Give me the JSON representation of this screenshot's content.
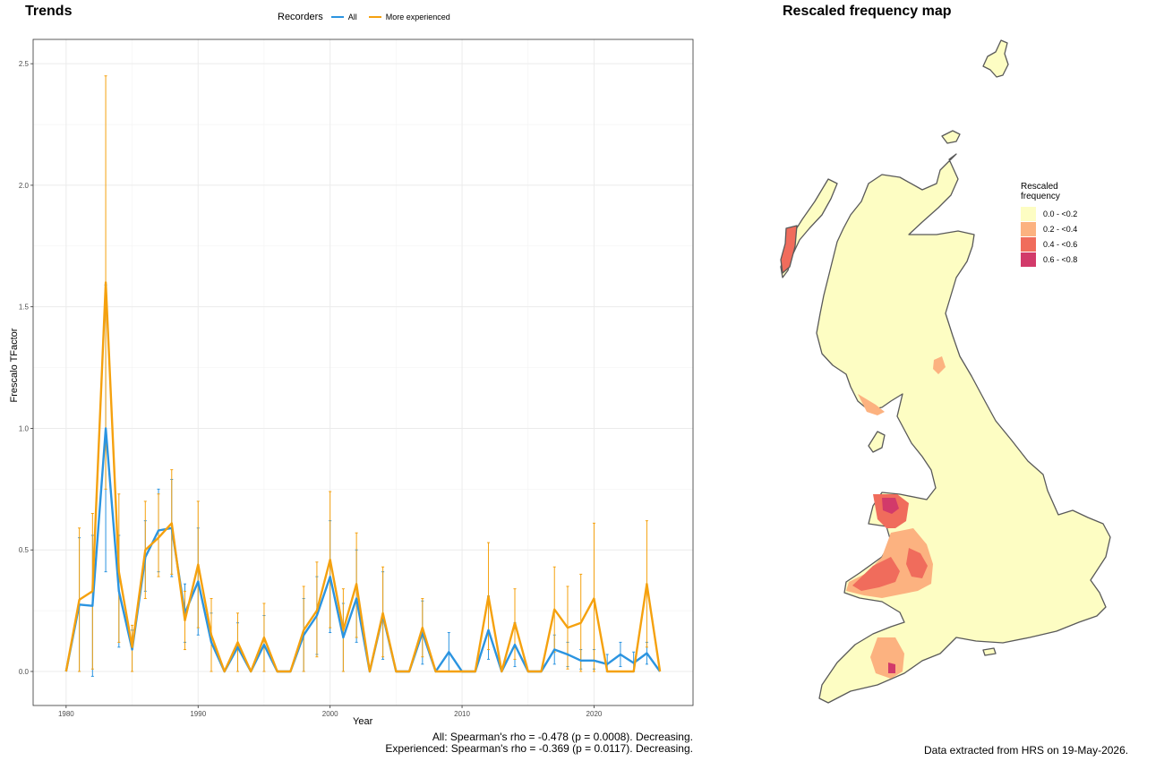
{
  "trends": {
    "title": "Trends",
    "legend_title": "Recorders",
    "xlabel": "Year",
    "ylabel": "Frescalo TFactor",
    "caption_all": "All: Spearman's rho = -0.478 (p = 0.0008). Decreasing.",
    "caption_experienced": "Experienced: Spearman's rho = -0.369 (p = 0.0117). Decreasing."
  },
  "chart_data": {
    "type": "line",
    "title": "Trends",
    "xlabel": "Year",
    "ylabel": "Frescalo TFactor",
    "xlim": [
      1977.5,
      2027.5
    ],
    "ylim": [
      -0.14,
      2.6
    ],
    "xticks": [
      1980,
      1990,
      2000,
      2010,
      2020
    ],
    "xtick_labels": [
      "1980",
      "1990",
      "2000",
      "2010",
      "2020"
    ],
    "yticks": [
      0.0,
      0.5,
      1.0,
      1.5,
      2.0,
      2.5
    ],
    "ytick_labels": [
      "0.0",
      "0.5",
      "1.0",
      "1.5",
      "2.0",
      "2.5"
    ],
    "grid": true,
    "legend_position": "top",
    "series": [
      {
        "name": "All",
        "color": "#2b94e0",
        "points": [
          {
            "x": 1980,
            "y": 0.0
          },
          {
            "x": 1981,
            "y": 0.275,
            "lo": 0.0,
            "hi": 0.55
          },
          {
            "x": 1982,
            "y": 0.27,
            "lo": -0.02,
            "hi": 0.56
          },
          {
            "x": 1983,
            "y": 1.0,
            "lo": 0.41,
            "hi": 1.59
          },
          {
            "x": 1984,
            "y": 0.33,
            "lo": 0.1,
            "hi": 0.56
          },
          {
            "x": 1985,
            "y": 0.09,
            "lo": 0.0,
            "hi": 0.17
          },
          {
            "x": 1986,
            "y": 0.47,
            "lo": 0.33,
            "hi": 0.62
          },
          {
            "x": 1987,
            "y": 0.58,
            "lo": 0.41,
            "hi": 0.75
          },
          {
            "x": 1988,
            "y": 0.59,
            "lo": 0.39,
            "hi": 0.79
          },
          {
            "x": 1989,
            "y": 0.24,
            "lo": 0.12,
            "hi": 0.36
          },
          {
            "x": 1990,
            "y": 0.37,
            "lo": 0.15,
            "hi": 0.59
          },
          {
            "x": 1991,
            "y": 0.12,
            "lo": 0.0,
            "hi": 0.24
          },
          {
            "x": 1992,
            "y": 0.0
          },
          {
            "x": 1993,
            "y": 0.1,
            "lo": 0.0,
            "hi": 0.2
          },
          {
            "x": 1994,
            "y": 0.0
          },
          {
            "x": 1995,
            "y": 0.11,
            "lo": 0.0,
            "hi": 0.23
          },
          {
            "x": 1996,
            "y": 0.0
          },
          {
            "x": 1997,
            "y": 0.0
          },
          {
            "x": 1998,
            "y": 0.15,
            "lo": 0.0,
            "hi": 0.3
          },
          {
            "x": 1999,
            "y": 0.23,
            "lo": 0.07,
            "hi": 0.39
          },
          {
            "x": 2000,
            "y": 0.39,
            "lo": 0.16,
            "hi": 0.62
          },
          {
            "x": 2001,
            "y": 0.14,
            "lo": 0.0,
            "hi": 0.28
          },
          {
            "x": 2002,
            "y": 0.3,
            "lo": 0.12,
            "hi": 0.5
          },
          {
            "x": 2003,
            "y": 0.0
          },
          {
            "x": 2004,
            "y": 0.23,
            "lo": 0.05,
            "hi": 0.41
          },
          {
            "x": 2005,
            "y": 0.0
          },
          {
            "x": 2006,
            "y": 0.0
          },
          {
            "x": 2007,
            "y": 0.16,
            "lo": 0.03,
            "hi": 0.29
          },
          {
            "x": 2008,
            "y": 0.0
          },
          {
            "x": 2009,
            "y": 0.08,
            "lo": 0.0,
            "hi": 0.16
          },
          {
            "x": 2010,
            "y": 0.0
          },
          {
            "x": 2011,
            "y": 0.0
          },
          {
            "x": 2012,
            "y": 0.17,
            "lo": 0.05,
            "hi": 0.31
          },
          {
            "x": 2013,
            "y": 0.0
          },
          {
            "x": 2014,
            "y": 0.11,
            "lo": 0.02,
            "hi": 0.2
          },
          {
            "x": 2015,
            "y": 0.0
          },
          {
            "x": 2016,
            "y": 0.0
          },
          {
            "x": 2017,
            "y": 0.09,
            "lo": 0.03,
            "hi": 0.15
          },
          {
            "x": 2018,
            "y": 0.07,
            "lo": 0.02,
            "hi": 0.12
          },
          {
            "x": 2019,
            "y": 0.045,
            "lo": 0.01,
            "hi": 0.09
          },
          {
            "x": 2020,
            "y": 0.045,
            "lo": 0.01,
            "hi": 0.09
          },
          {
            "x": 2021,
            "y": 0.03,
            "lo": 0.0,
            "hi": 0.07
          },
          {
            "x": 2022,
            "y": 0.07,
            "lo": 0.02,
            "hi": 0.12
          },
          {
            "x": 2023,
            "y": 0.035,
            "lo": 0.0,
            "hi": 0.08
          },
          {
            "x": 2024,
            "y": 0.075,
            "lo": 0.03,
            "hi": 0.12
          },
          {
            "x": 2025,
            "y": 0.0
          }
        ]
      },
      {
        "name": "More experienced",
        "color": "#f5a10e",
        "points": [
          {
            "x": 1980,
            "y": 0.0
          },
          {
            "x": 1981,
            "y": 0.295,
            "lo": 0.0,
            "hi": 0.59
          },
          {
            "x": 1982,
            "y": 0.33,
            "lo": 0.01,
            "hi": 0.65
          },
          {
            "x": 1983,
            "y": 1.6,
            "lo": 0.75,
            "hi": 2.45
          },
          {
            "x": 1984,
            "y": 0.41,
            "lo": 0.12,
            "hi": 0.73
          },
          {
            "x": 1985,
            "y": 0.1,
            "lo": 0.0,
            "hi": 0.19
          },
          {
            "x": 1986,
            "y": 0.5,
            "lo": 0.3,
            "hi": 0.7
          },
          {
            "x": 1987,
            "y": 0.55,
            "lo": 0.39,
            "hi": 0.73
          },
          {
            "x": 1988,
            "y": 0.61,
            "lo": 0.4,
            "hi": 0.83
          },
          {
            "x": 1989,
            "y": 0.21,
            "lo": 0.09,
            "hi": 0.33
          },
          {
            "x": 1990,
            "y": 0.44,
            "lo": 0.18,
            "hi": 0.7
          },
          {
            "x": 1991,
            "y": 0.15,
            "lo": 0.0,
            "hi": 0.3
          },
          {
            "x": 1992,
            "y": 0.0
          },
          {
            "x": 1993,
            "y": 0.12,
            "lo": 0.0,
            "hi": 0.24
          },
          {
            "x": 1994,
            "y": 0.0
          },
          {
            "x": 1995,
            "y": 0.14,
            "lo": 0.0,
            "hi": 0.28
          },
          {
            "x": 1996,
            "y": 0.0
          },
          {
            "x": 1997,
            "y": 0.0
          },
          {
            "x": 1998,
            "y": 0.17,
            "lo": 0.0,
            "hi": 0.35
          },
          {
            "x": 1999,
            "y": 0.25,
            "lo": 0.06,
            "hi": 0.45
          },
          {
            "x": 2000,
            "y": 0.46,
            "lo": 0.18,
            "hi": 0.74
          },
          {
            "x": 2001,
            "y": 0.17,
            "lo": 0.0,
            "hi": 0.34
          },
          {
            "x": 2002,
            "y": 0.36,
            "lo": 0.14,
            "hi": 0.57
          },
          {
            "x": 2003,
            "y": 0.0
          },
          {
            "x": 2004,
            "y": 0.24,
            "lo": 0.06,
            "hi": 0.43
          },
          {
            "x": 2005,
            "y": 0.0
          },
          {
            "x": 2006,
            "y": 0.0
          },
          {
            "x": 2007,
            "y": 0.18,
            "lo": 0.06,
            "hi": 0.3
          },
          {
            "x": 2008,
            "y": 0.0
          },
          {
            "x": 2009,
            "y": 0.0
          },
          {
            "x": 2010,
            "y": 0.0
          },
          {
            "x": 2011,
            "y": 0.0
          },
          {
            "x": 2012,
            "y": 0.31,
            "lo": 0.09,
            "hi": 0.53
          },
          {
            "x": 2013,
            "y": 0.0
          },
          {
            "x": 2014,
            "y": 0.2,
            "lo": 0.05,
            "hi": 0.34
          },
          {
            "x": 2015,
            "y": 0.0
          },
          {
            "x": 2016,
            "y": 0.0
          },
          {
            "x": 2017,
            "y": 0.255,
            "lo": 0.08,
            "hi": 0.43
          },
          {
            "x": 2018,
            "y": 0.18,
            "lo": 0.01,
            "hi": 0.35
          },
          {
            "x": 2019,
            "y": 0.2,
            "lo": 0.0,
            "hi": 0.4
          },
          {
            "x": 2020,
            "y": 0.3,
            "lo": 0.0,
            "hi": 0.61
          },
          {
            "x": 2021,
            "y": 0.0
          },
          {
            "x": 2022,
            "y": 0.0
          },
          {
            "x": 2023,
            "y": 0.0
          },
          {
            "x": 2024,
            "y": 0.36,
            "lo": 0.1,
            "hi": 0.62
          },
          {
            "x": 2025,
            "y": 0.0
          }
        ]
      }
    ]
  },
  "map": {
    "title": "Rescaled frequency map",
    "legend_title_line1": "Rescaled",
    "legend_title_line2": "frequency",
    "legend": [
      {
        "label": "0.0 - <0.2",
        "color": "#fdfdc3"
      },
      {
        "label": "0.2 - <0.4",
        "color": "#fcb280"
      },
      {
        "label": "0.4 - <0.6",
        "color": "#f06c5c"
      },
      {
        "label": "0.6 - <0.8",
        "color": "#d23a6a"
      }
    ],
    "footer": "Data extracted from HRS on 19-May-2026."
  },
  "colors": {
    "all": "#2b94e0",
    "experienced": "#f5a10e",
    "land": "#fdfdc3",
    "coast": "#595959",
    "low": "#fcb280",
    "mid": "#f06c5c",
    "high": "#d23a6a"
  }
}
